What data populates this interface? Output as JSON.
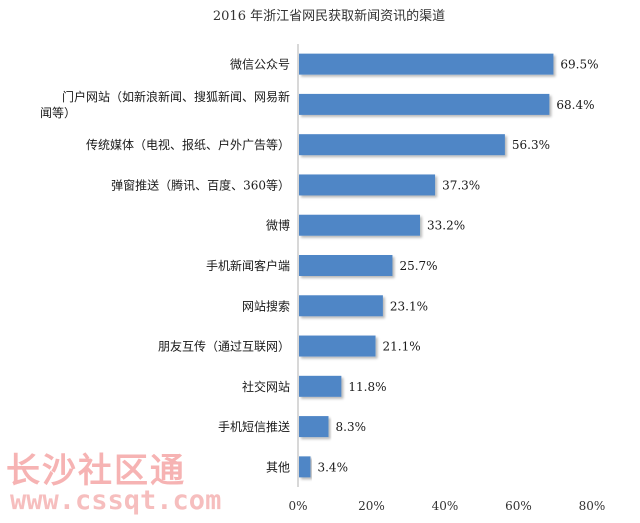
{
  "chart_data": {
    "type": "bar",
    "orientation": "horizontal",
    "title": "2016 年浙江省网民获取新闻资讯的渠道",
    "categories": [
      [
        "微信公众号"
      ],
      [
        "门户网站（如新浪新闻、搜狐新闻、网易新",
        "闻等）"
      ],
      [
        "传统媒体（电视、报纸、户外广告等）"
      ],
      [
        "弹窗推送（腾讯、百度、360等）"
      ],
      [
        "微博"
      ],
      [
        "手机新闻客户端"
      ],
      [
        "网站搜索"
      ],
      [
        "朋友互传（通过互联网）"
      ],
      [
        "社交网站"
      ],
      [
        "手机短信推送"
      ],
      [
        "其他"
      ]
    ],
    "values": [
      69.5,
      68.4,
      56.3,
      37.3,
      33.2,
      25.7,
      23.1,
      21.1,
      11.8,
      8.3,
      3.4
    ],
    "value_labels": [
      "69.5%",
      "68.4%",
      "56.3%",
      "37.3%",
      "33.2%",
      "25.7%",
      "23.1%",
      "21.1%",
      "11.8%",
      "8.3%",
      "3.4%"
    ],
    "xlim": [
      0,
      80
    ],
    "xticks": [
      0,
      20,
      40,
      60,
      80
    ],
    "xtick_labels": [
      "0%",
      "20%",
      "40%",
      "60%",
      "80%"
    ],
    "grid": false,
    "bar_color": "#4f86c6"
  },
  "watermark": {
    "text_cn": "长沙社区通",
    "url": "www.cssqt.com"
  }
}
